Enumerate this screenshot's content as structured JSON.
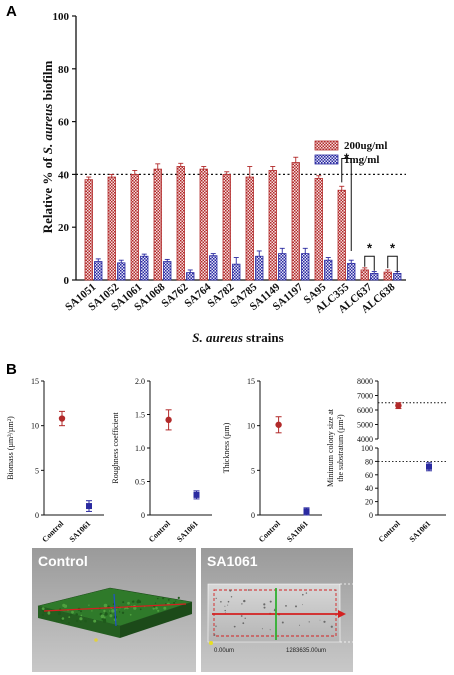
{
  "panel_a_label": "A",
  "panel_b_label": "B",
  "chart_data": [
    {
      "type": "bar",
      "panel": "A",
      "ylabel_prefix": "Relative % of ",
      "ylabel_italic": "S. aureus",
      "ylabel_suffix": " biofilm",
      "xlabel_italic": "S. aureus",
      "xlabel_suffix": " strains",
      "ylim": [
        0,
        100
      ],
      "yticks": [
        0,
        20,
        40,
        60,
        80,
        100
      ],
      "reference_line": 40,
      "categories": [
        "SA1051",
        "SA1052",
        "SA1061",
        "SA1068",
        "SA762",
        "SA764",
        "SA782",
        "SA785",
        "SA1149",
        "SA1197",
        "SA95",
        "ALC355",
        "ALC637",
        "ALC638"
      ],
      "series": [
        {
          "name": "200ug/ml",
          "color": "#b22a2a",
          "values": [
            38,
            39,
            40,
            42,
            43,
            42,
            40,
            39,
            41.5,
            44.5,
            38.5,
            34,
            3.8,
            3
          ],
          "errors": [
            1,
            1,
            1.5,
            2,
            1.2,
            1,
            1,
            4,
            1.5,
            2,
            1,
            1.5,
            0.8,
            0.8
          ]
        },
        {
          "name": "1mg/ml",
          "color": "#2a2aa0",
          "values": [
            7,
            6.5,
            9,
            7,
            2.8,
            9.2,
            6,
            9,
            10,
            10,
            7.5,
            6.3,
            2.5,
            2.5
          ],
          "errors": [
            1,
            1,
            0.8,
            0.8,
            1,
            0.8,
            2.5,
            2,
            2,
            2,
            1,
            1.2,
            0.7,
            0.7
          ]
        }
      ],
      "legend_placement": "right",
      "significance": [
        {
          "between": [
            "ALC355-200ug/ml",
            "ALC355-1mg/ml"
          ],
          "label": "*"
        },
        {
          "between": [
            "ALC637-200ug/ml",
            "ALC637-1mg/ml"
          ],
          "label": "*"
        },
        {
          "between": [
            "ALC638-200ug/ml",
            "ALC638-1mg/ml"
          ],
          "label": "*"
        }
      ]
    },
    {
      "type": "scatter",
      "panel": "B",
      "ylabel": "Biomass (µm³/µm²)",
      "ylim": [
        0,
        15
      ],
      "yticks": [
        0,
        5,
        10,
        15
      ],
      "categories": [
        "Control",
        "SA1061"
      ],
      "points": [
        {
          "category": "Control",
          "y": 10.8,
          "err": 0.8,
          "color": "#b22a2a"
        },
        {
          "category": "SA1061",
          "y": 1.0,
          "err": 0.6,
          "color": "#2a2aa0"
        }
      ]
    },
    {
      "type": "scatter",
      "panel": "B",
      "ylabel": "Roughness coefficient",
      "ylim": [
        0,
        2.0
      ],
      "yticks": [
        0,
        0.5,
        1.0,
        1.5,
        2.0
      ],
      "ytick_labels": [
        "0",
        "0.5",
        "1.0",
        "1.5",
        "2.0"
      ],
      "categories": [
        "Control",
        "SA1061"
      ],
      "points": [
        {
          "category": "Control",
          "y": 1.42,
          "err": 0.15,
          "color": "#b22a2a"
        },
        {
          "category": "SA1061",
          "y": 0.3,
          "err": 0.06,
          "color": "#2a2aa0"
        }
      ]
    },
    {
      "type": "scatter",
      "panel": "B",
      "ylabel": "Thickness (µm)",
      "ylim": [
        0,
        15
      ],
      "yticks": [
        0,
        5,
        10,
        15
      ],
      "categories": [
        "Control",
        "SA1061"
      ],
      "points": [
        {
          "category": "Control",
          "y": 10.1,
          "err": 0.9,
          "color": "#b22a2a"
        },
        {
          "category": "SA1061",
          "y": 0.4,
          "err": 0.4,
          "color": "#2a2aa0"
        }
      ]
    },
    {
      "type": "scatter",
      "panel": "B",
      "ylabel_line1": "Minimum colony size at",
      "ylabel_line2": "the substratum (µm²)",
      "broken_axis": true,
      "upper_range": [
        4000,
        8000
      ],
      "upper_ticks": [
        4000,
        5000,
        6000,
        7000,
        8000
      ],
      "lower_range": [
        0,
        100
      ],
      "lower_ticks": [
        0,
        20,
        40,
        60,
        80,
        100
      ],
      "reference_lines": [
        6500,
        80
      ],
      "categories": [
        "Control",
        "SA1061"
      ],
      "points": [
        {
          "category": "Control",
          "y": 6300,
          "err": 200,
          "color": "#b22a2a",
          "segment": "upper"
        },
        {
          "category": "SA1061",
          "y": 72,
          "err": 6,
          "color": "#2a2aa0",
          "segment": "lower"
        }
      ]
    }
  ],
  "images": {
    "control_title": "Control",
    "sa1061_title": "SA1061",
    "scale_start": "0.00um",
    "scale_end": "1283635.00um"
  }
}
